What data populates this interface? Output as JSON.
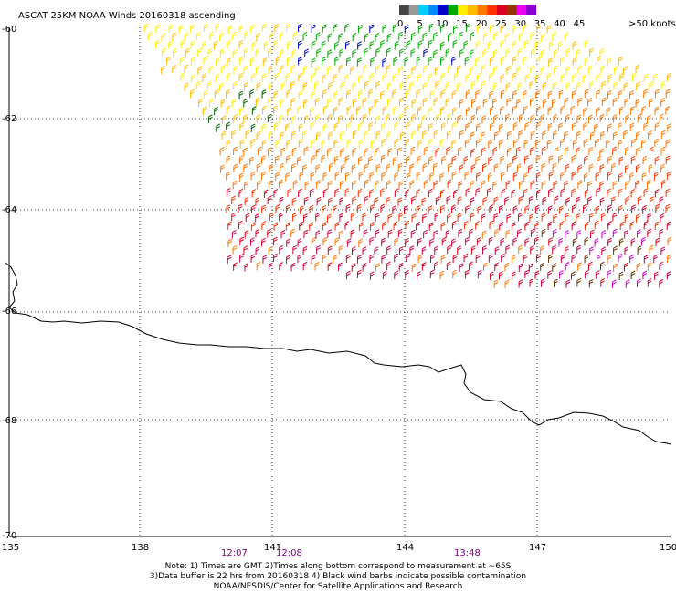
{
  "title": "ASCAT 25KM NOAA Winds 20160318 ascending",
  "legend": {
    "ticks": [
      "0",
      "5",
      "10",
      "15",
      "20",
      "25",
      "30",
      "35",
      "40",
      "45"
    ],
    "last_label": ">50 knots",
    "colors": [
      "#444444",
      "#999999",
      "#00ccff",
      "#0088ff",
      "#0000cc",
      "#00aa00",
      "#ffee00",
      "#ffbb00",
      "#ff7700",
      "#ff3300",
      "#dd0022",
      "#993300",
      "#ee00ee",
      "#8800cc"
    ]
  },
  "axes": {
    "lat_labels": [
      "-60",
      "-62",
      "-64",
      "-66",
      "-68",
      "-70"
    ],
    "lon_labels": [
      "135",
      "138",
      "141",
      "144",
      "147",
      "150"
    ],
    "time_labels": [
      "12:07",
      "12:08",
      "13:48"
    ]
  },
  "notes": [
    "Note: 1) Times are GMT 2)Times along bottom correspond to measurement at ~65S",
    "3)Data buffer is 22 hrs from 20160318 4) Black wind barbs indicate possible contamination",
    "NOAA/NESDIS/Center for Satellite Applications and Research"
  ]
}
